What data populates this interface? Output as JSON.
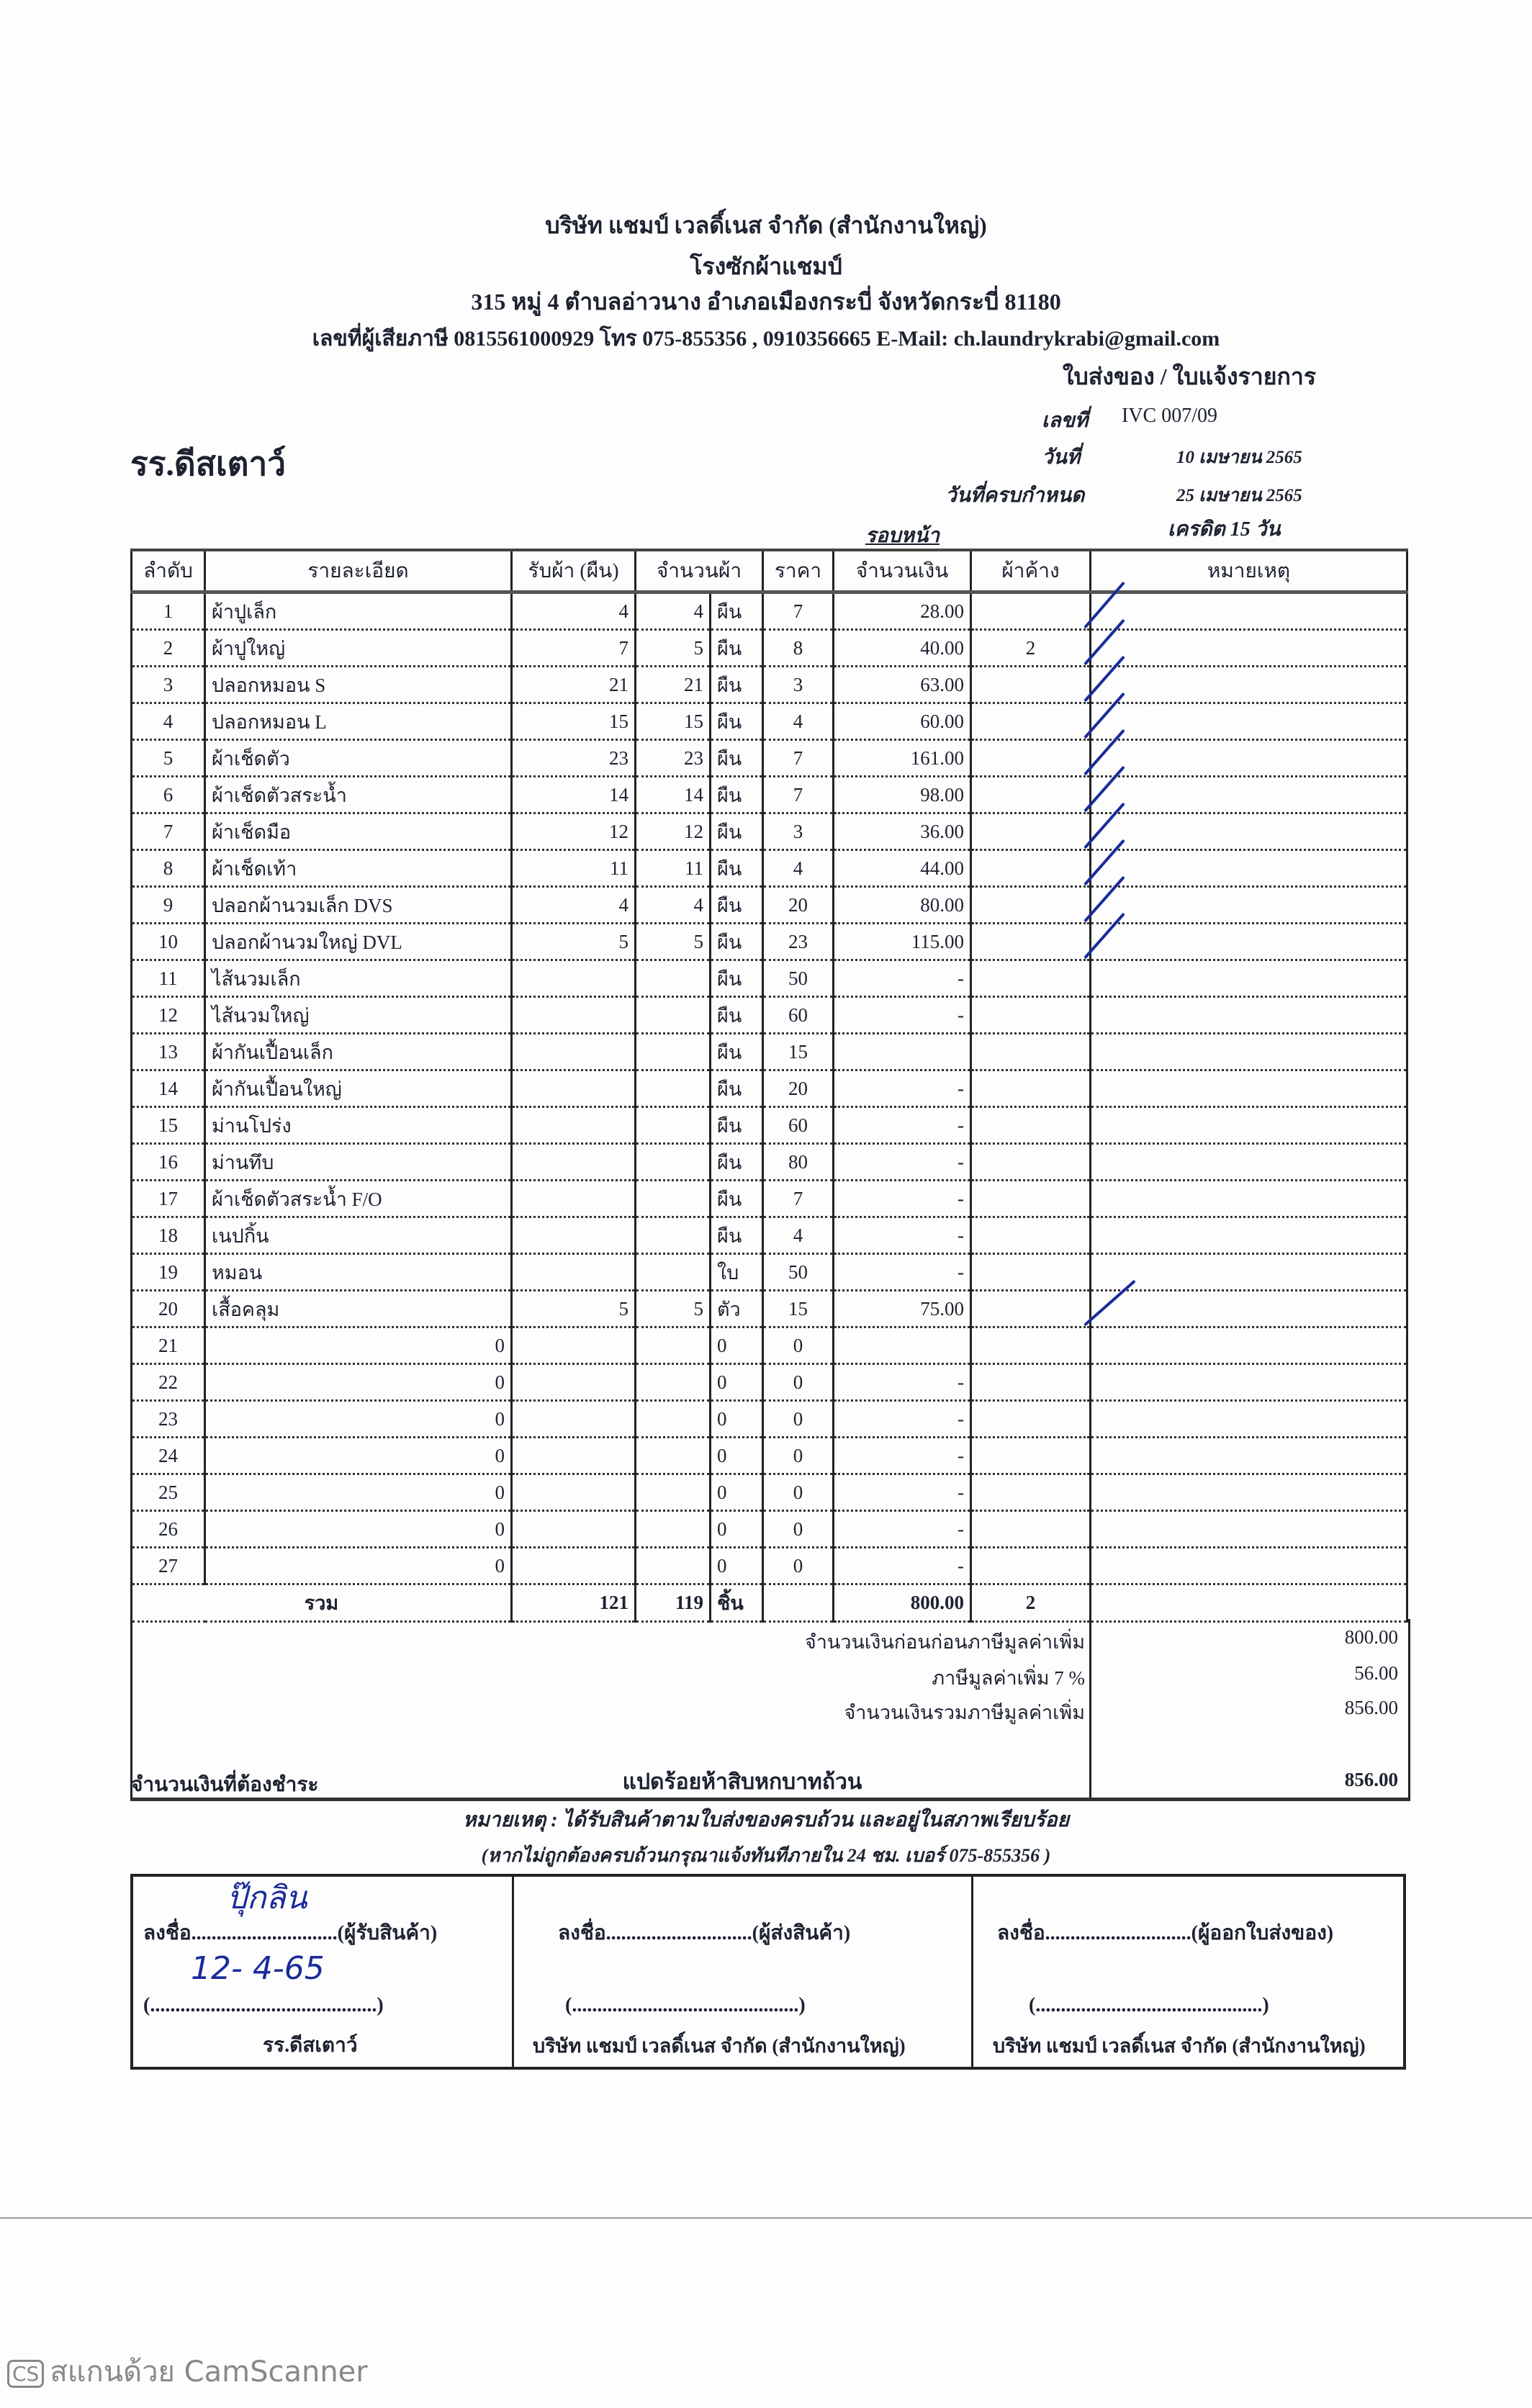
{
  "header": {
    "company": "บริษัท แชมป์ เวลดิ์เนส จำกัด (สำนักงานใหญ่)",
    "factory": "โรงซักผ้าแชมป์",
    "address": "315 หมู่ 4 ตำบลอ่าวนาง อำเภอเมืองกระบี่ จังหวัดกระบี่ 81180",
    "contact": "เลขที่ผู้เสียภาษี 0815561000929 โทร 075-855356 , 0910356665  E-Mail: ch.laundrykrabi@gmail.com",
    "doc_type": "ใบส่งของ / ใบแจ้งรายการ"
  },
  "customer": "รร.ดีสเตาว์",
  "meta": {
    "number_label": "เลขที่",
    "number": "IVC 007/09",
    "date_label": "วันที่",
    "date": "10 เมษายน 2565",
    "due_label": "วันที่ครบกำหนด",
    "due": "25 เมษายน 2565",
    "round": "รอบหน้า",
    "credit": "เครดิต 15 วัน"
  },
  "table": {
    "headers": [
      "ลำดับ",
      "รายละเอียด",
      "รับผ้า (ผืน)",
      "จำนวนผ้า",
      "ราคา",
      "จำนวนเงิน",
      "ผ้าค้าง",
      "หมายเหตุ"
    ],
    "rows": [
      {
        "no": "1",
        "desc": "ผ้าปูเล็ก",
        "recv": "4",
        "qty": "4",
        "unit": "ผืน",
        "price": "7",
        "amount": "28.00",
        "pending": "",
        "check": true
      },
      {
        "no": "2",
        "desc": "ผ้าปูใหญ่",
        "recv": "7",
        "qty": "5",
        "unit": "ผืน",
        "price": "8",
        "amount": "40.00",
        "pending": "2",
        "check": true
      },
      {
        "no": "3",
        "desc": "ปลอกหมอน S",
        "recv": "21",
        "qty": "21",
        "unit": "ผืน",
        "price": "3",
        "amount": "63.00",
        "pending": "",
        "check": true
      },
      {
        "no": "4",
        "desc": "ปลอกหมอน L",
        "recv": "15",
        "qty": "15",
        "unit": "ผืน",
        "price": "4",
        "amount": "60.00",
        "pending": "",
        "check": true
      },
      {
        "no": "5",
        "desc": "ผ้าเช็ดตัว",
        "recv": "23",
        "qty": "23",
        "unit": "ผืน",
        "price": "7",
        "amount": "161.00",
        "pending": "",
        "check": true
      },
      {
        "no": "6",
        "desc": "ผ้าเช็ดตัวสระน้ำ",
        "recv": "14",
        "qty": "14",
        "unit": "ผืน",
        "price": "7",
        "amount": "98.00",
        "pending": "",
        "check": true
      },
      {
        "no": "7",
        "desc": "ผ้าเช็ดมือ",
        "recv": "12",
        "qty": "12",
        "unit": "ผืน",
        "price": "3",
        "amount": "36.00",
        "pending": "",
        "check": true
      },
      {
        "no": "8",
        "desc": "ผ้าเช็ดเท้า",
        "recv": "11",
        "qty": "11",
        "unit": "ผืน",
        "price": "4",
        "amount": "44.00",
        "pending": "",
        "check": true
      },
      {
        "no": "9",
        "desc": "ปลอกผ้านวมเล็ก DVS",
        "recv": "4",
        "qty": "4",
        "unit": "ผืน",
        "price": "20",
        "amount": "80.00",
        "pending": "",
        "check": true
      },
      {
        "no": "10",
        "desc": "ปลอกผ้านวมใหญ่ DVL",
        "recv": "5",
        "qty": "5",
        "unit": "ผืน",
        "price": "23",
        "amount": "115.00",
        "pending": "",
        "check": true
      },
      {
        "no": "11",
        "desc": "ไส้นวมเล็ก",
        "recv": "",
        "qty": "",
        "unit": "ผืน",
        "price": "50",
        "amount": "-",
        "pending": "",
        "check": false
      },
      {
        "no": "12",
        "desc": "ไส้นวมใหญ่",
        "recv": "",
        "qty": "",
        "unit": "ผืน",
        "price": "60",
        "amount": "-",
        "pending": "",
        "check": false
      },
      {
        "no": "13",
        "desc": "ผ้ากันเปื้อนเล็ก",
        "recv": "",
        "qty": "",
        "unit": "ผืน",
        "price": "15",
        "amount": "",
        "pending": "",
        "check": false
      },
      {
        "no": "14",
        "desc": "ผ้ากันเปื้อนใหญ่",
        "recv": "",
        "qty": "",
        "unit": "ผืน",
        "price": "20",
        "amount": "-",
        "pending": "",
        "check": false
      },
      {
        "no": "15",
        "desc": "ม่านโปร่ง",
        "recv": "",
        "qty": "",
        "unit": "ผืน",
        "price": "60",
        "amount": "-",
        "pending": "",
        "check": false
      },
      {
        "no": "16",
        "desc": "ม่านทึบ",
        "recv": "",
        "qty": "",
        "unit": "ผืน",
        "price": "80",
        "amount": "-",
        "pending": "",
        "check": false
      },
      {
        "no": "17",
        "desc": "ผ้าเช็ดตัวสระน้ำ F/O",
        "recv": "",
        "qty": "",
        "unit": "ผืน",
        "price": "7",
        "amount": "-",
        "pending": "",
        "check": false
      },
      {
        "no": "18",
        "desc": "เนปกิ้น",
        "recv": "",
        "qty": "",
        "unit": "ผืน",
        "price": "4",
        "amount": "-",
        "pending": "",
        "check": false
      },
      {
        "no": "19",
        "desc": "หมอน",
        "recv": "",
        "qty": "",
        "unit": "ใบ",
        "price": "50",
        "amount": "-",
        "pending": "",
        "check": false
      },
      {
        "no": "20",
        "desc": "เสื้อคลุม",
        "recv": "5",
        "qty": "5",
        "unit": "ตัว",
        "price": "15",
        "amount": "75.00",
        "pending": "",
        "check": true
      },
      {
        "no": "21",
        "desc": "0",
        "recv": "",
        "qty": "",
        "unit": "0",
        "price": "0",
        "amount": "",
        "pending": "",
        "check": false
      },
      {
        "no": "22",
        "desc": "0",
        "recv": "",
        "qty": "",
        "unit": "0",
        "price": "0",
        "amount": "-",
        "pending": "",
        "check": false
      },
      {
        "no": "23",
        "desc": "0",
        "recv": "",
        "qty": "",
        "unit": "0",
        "price": "0",
        "amount": "-",
        "pending": "",
        "check": false
      },
      {
        "no": "24",
        "desc": "0",
        "recv": "",
        "qty": "",
        "unit": "0",
        "price": "0",
        "amount": "-",
        "pending": "",
        "check": false
      },
      {
        "no": "25",
        "desc": "0",
        "recv": "",
        "qty": "",
        "unit": "0",
        "price": "0",
        "amount": "-",
        "pending": "",
        "check": false
      },
      {
        "no": "26",
        "desc": "0",
        "recv": "",
        "qty": "",
        "unit": "0",
        "price": "0",
        "amount": "-",
        "pending": "",
        "check": false
      },
      {
        "no": "27",
        "desc": "0",
        "recv": "",
        "qty": "",
        "unit": "0",
        "price": "0",
        "amount": "-",
        "pending": "",
        "check": false
      }
    ],
    "total": {
      "label": "รวม",
      "recv": "121",
      "qty": "119",
      "unit": "ชิ้น",
      "amount": "800.00",
      "pending": "2"
    }
  },
  "summary": {
    "subtotal_label": "จำนวนเงินก่อนก่อนภาษีมูลค่าเพิ่ม",
    "subtotal": "800.00",
    "vat_label": "ภาษีมูลค่าเพิ่ม 7 %",
    "vat": "56.00",
    "grand_label": "จำนวนเงินรวมภาษีมูลค่าเพิ่ม",
    "grand": "856.00",
    "due_label": "จำนวนเงินที่ต้องชำระ",
    "due_words": "แปดร้อยห้าสิบหกบาทถ้วน",
    "due": "856.00"
  },
  "remarks": {
    "line1": "หมายเหตุ : ได้รับสินค้าตามใบส่งของครบถ้วน และอยู่ในสภาพเรียบร้อย",
    "line2": "(หากไม่ถูกต้องครบถ้วนกรุณาแจ้งทันทีภายใน 24 ชม. เบอร์ 075-855356 )"
  },
  "signatures": [
    {
      "line": "ลงชื่อ.............................(ผู้รับสินค้า)",
      "name_line": "(.............................................)",
      "org": "รร.ดีสเตาว์",
      "handwritten_sign": "ปุ๊กลิน",
      "handwritten_date": "12- 4-65"
    },
    {
      "line": "ลงชื่อ.............................(ผู้ส่งสินค้า)",
      "name_line": "(.............................................)",
      "org": "บริษัท แชมป์ เวลดิ์เนส จำกัด (สำนักงานใหญ่)"
    },
    {
      "line": "ลงชื่อ.............................(ผู้ออกใบส่งของ)",
      "name_line": "(.............................................)",
      "org": "บริษัท แชมป์ เวลดิ์เนส จำกัด (สำนักงานใหญ่)"
    }
  ],
  "watermark": {
    "logo": "CS",
    "text": "สแกนด้วย CamScanner"
  },
  "colors": {
    "ink": "#1d2230",
    "pen": "#1a2b9a"
  }
}
